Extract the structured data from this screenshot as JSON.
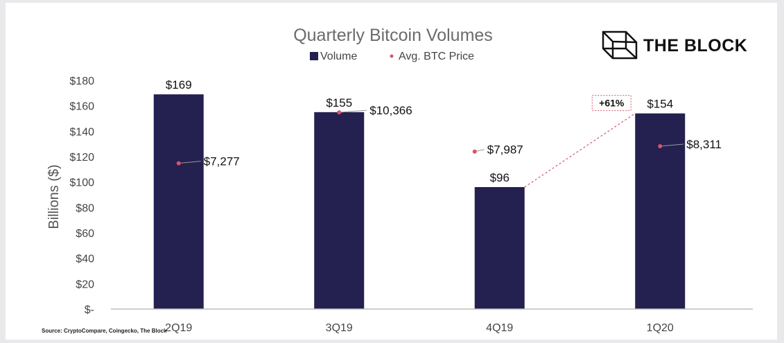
{
  "chart_data": {
    "type": "bar",
    "title": "Quarterly Bitcoin Volumes",
    "ylabel": "Billions ($)",
    "xlabel": "",
    "ylim": [
      0,
      180
    ],
    "y_ticks": [
      0,
      20,
      40,
      60,
      80,
      100,
      120,
      140,
      160,
      180
    ],
    "y_tick_labels": [
      "$-",
      "$20",
      "$40",
      "$60",
      "$80",
      "$100",
      "$120",
      "$140",
      "$160",
      "$180"
    ],
    "categories": [
      "2Q19",
      "3Q19",
      "4Q19",
      "1Q20"
    ],
    "legend": {
      "position": "top"
    },
    "grid": false,
    "series": [
      {
        "name": "Volume",
        "kind": "bar",
        "color": "#24204f",
        "values": [
          169,
          155,
          96,
          154
        ],
        "labels": [
          "$169",
          "$155",
          "$96",
          "$154"
        ]
      },
      {
        "name": "Avg. BTC Price",
        "kind": "scatter",
        "color": "#d9546a",
        "values": [
          7277,
          10366,
          7987,
          8311
        ],
        "labels": [
          "$7,277",
          "$10,366",
          "$7,987",
          "$8,311"
        ]
      }
    ],
    "annotations": [
      {
        "text": "+61%",
        "from": "4Q19",
        "to": "1Q20"
      }
    ]
  },
  "brand": {
    "name": "THE BLOCK",
    "logo_icon": "cube-logo-icon"
  },
  "source": "Source: CryptoCompare, Coingecko, The Block"
}
